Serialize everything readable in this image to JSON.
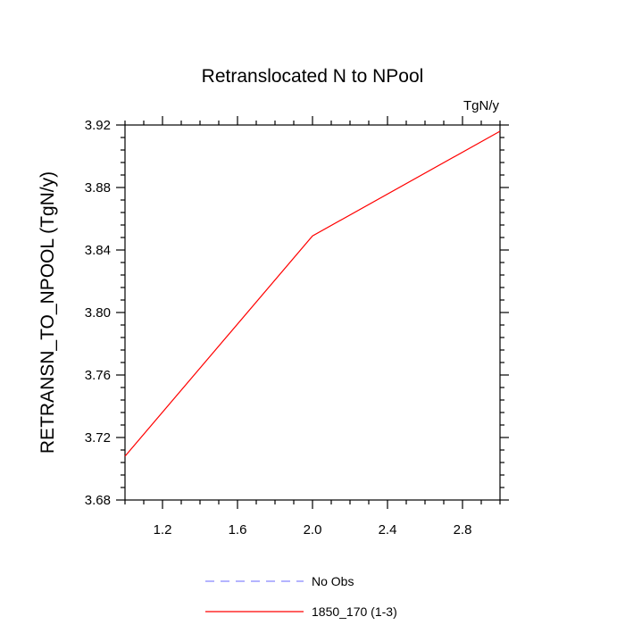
{
  "chart_data": {
    "type": "line",
    "title": "Retranslocated N to NPool",
    "units_label": "TgN/y",
    "ylabel": "RETRANSN_TO_NPOOL  (TgN/y)",
    "xlabel": "",
    "xlim": [
      1.0,
      3.0
    ],
    "ylim": [
      3.68,
      3.92
    ],
    "xticks": [
      1.2,
      1.6,
      2.0,
      2.4,
      2.8
    ],
    "xtick_labels": [
      "1.2",
      "1.6",
      "2.0",
      "2.4",
      "2.8"
    ],
    "xminor_step": 0.1,
    "yticks": [
      3.68,
      3.72,
      3.76,
      3.8,
      3.84,
      3.88,
      3.92
    ],
    "ytick_labels": [
      "3.68",
      "3.72",
      "3.76",
      "3.80",
      "3.84",
      "3.88",
      "3.92"
    ],
    "yminor_step": 0.008,
    "grid": false,
    "legend_position": "bottom-center",
    "series": [
      {
        "name": "1850_170 (1-3)",
        "color": "#ff0000",
        "dash": "solid",
        "x": [
          1.0,
          2.0,
          3.0
        ],
        "y": [
          3.708,
          3.849,
          3.916
        ]
      }
    ],
    "legend": [
      {
        "label": "No Obs",
        "color": "#8888ff",
        "dash": "dashed"
      },
      {
        "label": "1850_170 (1-3)",
        "color": "#ff0000",
        "dash": "solid"
      }
    ]
  }
}
